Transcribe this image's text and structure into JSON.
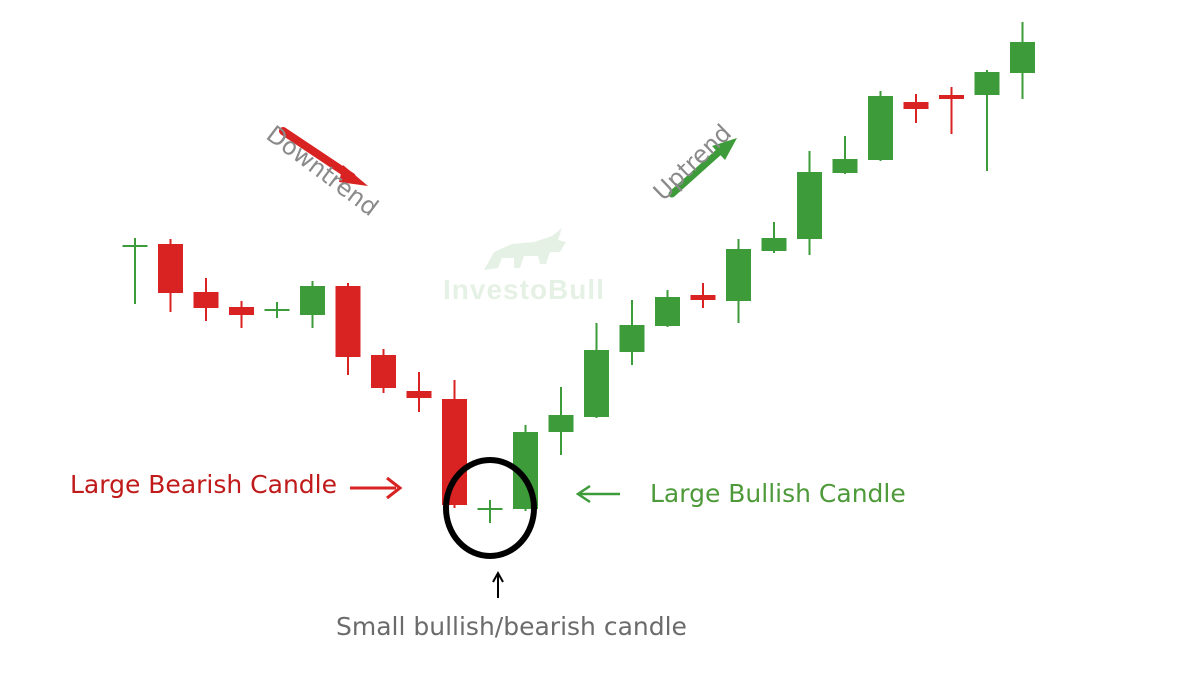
{
  "colors": {
    "bullish": "#3e9b3a",
    "bearish": "#d92222",
    "downtrend_text": "#8a8a8a",
    "uptrend_text": "#8a8a8a",
    "bearish_label": "#c01a1a",
    "bullish_label": "#4e9a3a",
    "small_label": "#6b6b6b",
    "circle": "#000000",
    "watermark": "#3e9b3a"
  },
  "annotations": {
    "downtrend": "Downtrend",
    "uptrend": "Uptrend",
    "large_bearish": "Large Bearish Candle",
    "large_bullish": "Large Bullish Candle",
    "small_candle": "Small bullish/bearish candle"
  },
  "watermark": {
    "text": "InvestoBull",
    "icon": "bull-icon"
  },
  "chart_data": {
    "type": "candlestick",
    "title": "",
    "xlabel": "",
    "ylabel": "",
    "grid": false,
    "ylim": [
      0,
      680
    ],
    "candles": [
      {
        "open": 434,
        "close": 434,
        "high": 442,
        "low": 376
      },
      {
        "open": 436,
        "close": 387,
        "high": 441,
        "low": 368
      },
      {
        "open": 388,
        "close": 372,
        "high": 402,
        "low": 359
      },
      {
        "open": 373,
        "close": 365,
        "high": 379,
        "low": 352
      },
      {
        "open": 370,
        "close": 370,
        "high": 378,
        "low": 362
      },
      {
        "open": 365,
        "close": 394,
        "high": 399,
        "low": 352
      },
      {
        "open": 394,
        "close": 323,
        "high": 397,
        "low": 305
      },
      {
        "open": 325,
        "close": 292,
        "high": 331,
        "low": 287
      },
      {
        "open": 289,
        "close": 282,
        "high": 308,
        "low": 268
      },
      {
        "open": 281,
        "close": 175,
        "high": 300,
        "low": 172
      },
      {
        "open": 171,
        "close": 171,
        "high": 180,
        "low": 157
      },
      {
        "open": 171,
        "close": 248,
        "high": 255,
        "low": 169
      },
      {
        "open": 248,
        "close": 265,
        "high": 293,
        "low": 225
      },
      {
        "open": 263,
        "close": 330,
        "high": 357,
        "low": 262
      },
      {
        "open": 328,
        "close": 355,
        "high": 380,
        "low": 315
      },
      {
        "open": 354,
        "close": 383,
        "high": 390,
        "low": 353
      },
      {
        "open": 385,
        "close": 380,
        "high": 397,
        "low": 372
      },
      {
        "open": 379,
        "close": 431,
        "high": 441,
        "low": 357
      },
      {
        "open": 429,
        "close": 442,
        "high": 458,
        "low": 427
      },
      {
        "open": 441,
        "close": 508,
        "high": 529,
        "low": 425
      },
      {
        "open": 507,
        "close": 521,
        "high": 544,
        "low": 506
      },
      {
        "open": 520,
        "close": 584,
        "high": 589,
        "low": 519
      },
      {
        "open": 578,
        "close": 571,
        "high": 586,
        "low": 557
      },
      {
        "open": 585,
        "close": 581,
        "high": 593,
        "low": 546
      },
      {
        "open": 585,
        "close": 608,
        "high": 610,
        "low": 509
      },
      {
        "open": 607,
        "close": 638,
        "high": 658,
        "low": 581
      }
    ]
  }
}
